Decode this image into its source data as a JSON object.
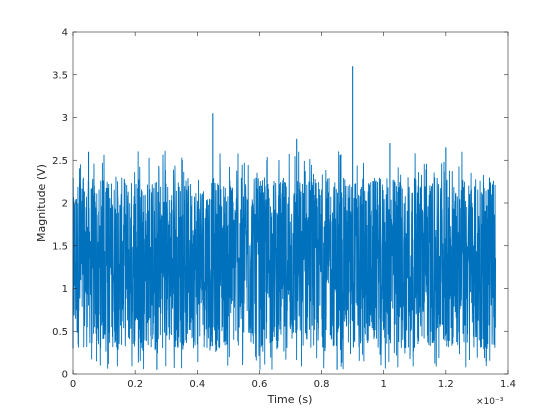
{
  "chart_data": {
    "type": "line",
    "title": "",
    "xlabel": "Time (s)",
    "ylabel": "Magnitude (V)",
    "x_exponent_label": "×10⁻³",
    "x_scale_factor": 0.001,
    "xlim": [
      0,
      1.4
    ],
    "ylim": [
      0,
      4
    ],
    "x_ticks": [
      0,
      0.2,
      0.4,
      0.6,
      0.8,
      1,
      1.2,
      1.4
    ],
    "x_tick_labels": [
      "0",
      "0.2",
      "0.4",
      "0.6",
      "0.8",
      "1",
      "1.2",
      "1.4"
    ],
    "y_ticks": [
      0,
      0.5,
      1,
      1.5,
      2,
      2.5,
      3,
      3.5,
      4
    ],
    "y_tick_labels": [
      "0",
      "0.5",
      "1",
      "1.5",
      "2",
      "2.5",
      "3",
      "3.5",
      "4"
    ],
    "grid": false,
    "box": true,
    "series": [
      {
        "color": "#0072bd",
        "x_range": [
          0,
          1.36
        ],
        "typical_range": [
          0.3,
          2.3
        ],
        "notable_peaks": [
          {
            "x": 0.45,
            "y": 3.05
          },
          {
            "x": 0.9,
            "y": 3.6
          },
          {
            "x": 0.05,
            "y": 2.6
          },
          {
            "x": 0.72,
            "y": 2.75
          },
          {
            "x": 1.02,
            "y": 2.7
          },
          {
            "x": 1.2,
            "y": 2.65
          }
        ],
        "notable_troughs": [
          {
            "x": 0.0,
            "y": 0.3
          },
          {
            "x": 0.27,
            "y": 0.05
          },
          {
            "x": 0.85,
            "y": 0.05
          },
          {
            "x": 1.33,
            "y": 0.15
          }
        ]
      }
    ]
  }
}
